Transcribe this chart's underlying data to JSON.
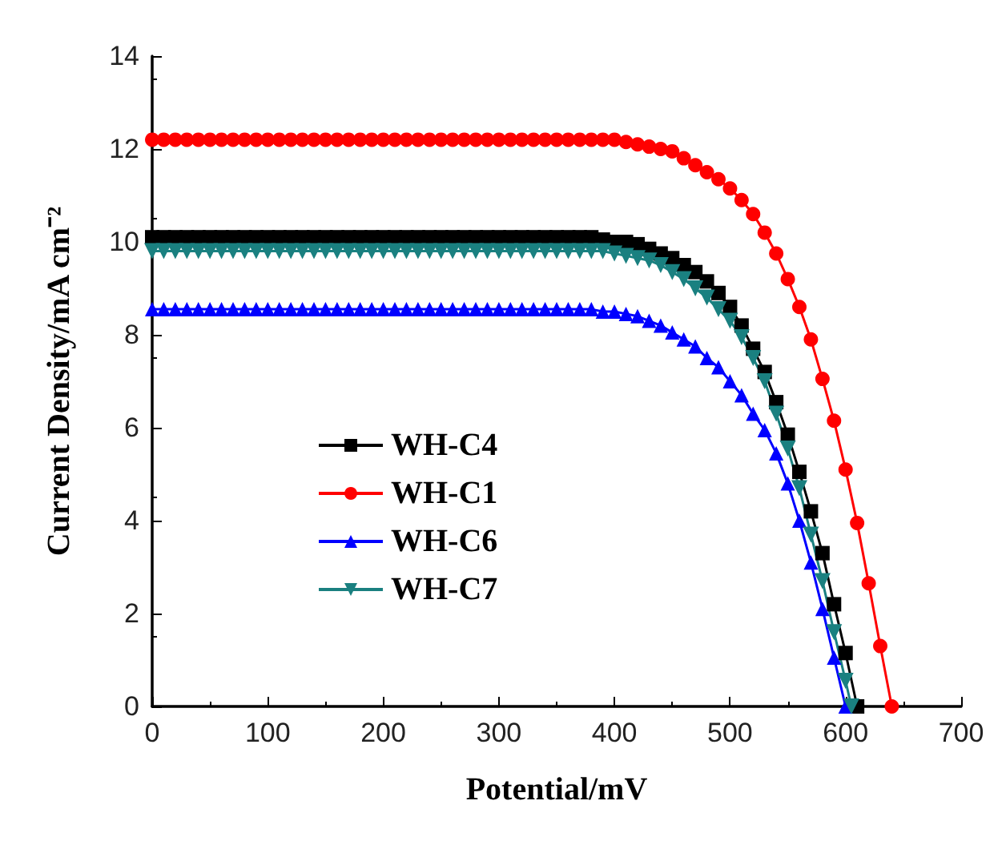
{
  "chart_data": {
    "type": "line",
    "xlabel": "Potential/mV",
    "ylabel": "Current Density/mA cm⁻²",
    "xlim": [
      0,
      700
    ],
    "ylim": [
      0,
      14
    ],
    "xticks": [
      0,
      100,
      200,
      300,
      400,
      500,
      600,
      700
    ],
    "yticks": [
      0,
      2,
      4,
      6,
      8,
      10,
      12,
      14
    ],
    "grid": false,
    "legend": "bottom left",
    "line_style": "solid",
    "series": [
      {
        "name": "WH-C4",
        "color": "#000000",
        "marker": "square",
        "x": [
          0,
          10,
          20,
          30,
          40,
          50,
          60,
          70,
          80,
          90,
          100,
          110,
          120,
          130,
          140,
          150,
          160,
          170,
          180,
          190,
          200,
          210,
          220,
          230,
          240,
          250,
          260,
          270,
          280,
          290,
          300,
          310,
          320,
          330,
          340,
          350,
          360,
          370,
          380,
          390,
          400,
          410,
          420,
          430,
          440,
          450,
          460,
          470,
          480,
          490,
          500,
          510,
          520,
          530,
          540,
          550,
          560,
          570,
          580,
          590,
          600,
          610
        ],
        "values": [
          10.1,
          10.1,
          10.1,
          10.1,
          10.1,
          10.1,
          10.1,
          10.1,
          10.1,
          10.1,
          10.1,
          10.1,
          10.1,
          10.1,
          10.1,
          10.1,
          10.1,
          10.1,
          10.1,
          10.1,
          10.1,
          10.1,
          10.1,
          10.1,
          10.1,
          10.1,
          10.1,
          10.1,
          10.1,
          10.1,
          10.1,
          10.1,
          10.1,
          10.1,
          10.1,
          10.1,
          10.1,
          10.1,
          10.1,
          10.05,
          10.0,
          10.0,
          9.95,
          9.85,
          9.75,
          9.65,
          9.5,
          9.35,
          9.15,
          8.9,
          8.6,
          8.2,
          7.7,
          7.2,
          6.55,
          5.85,
          5.05,
          4.2,
          3.3,
          2.2,
          1.15,
          0
        ]
      },
      {
        "name": "WH-C1",
        "color": "#ff0000",
        "marker": "circle",
        "x": [
          0,
          10,
          20,
          30,
          40,
          50,
          60,
          70,
          80,
          90,
          100,
          110,
          120,
          130,
          140,
          150,
          160,
          170,
          180,
          190,
          200,
          210,
          220,
          230,
          240,
          250,
          260,
          270,
          280,
          290,
          300,
          310,
          320,
          330,
          340,
          350,
          360,
          370,
          380,
          390,
          400,
          410,
          420,
          430,
          440,
          450,
          460,
          470,
          480,
          490,
          500,
          510,
          520,
          530,
          540,
          550,
          560,
          570,
          580,
          590,
          600,
          610,
          620,
          630,
          640
        ],
        "values": [
          12.2,
          12.2,
          12.2,
          12.2,
          12.2,
          12.2,
          12.2,
          12.2,
          12.2,
          12.2,
          12.2,
          12.2,
          12.2,
          12.2,
          12.2,
          12.2,
          12.2,
          12.2,
          12.2,
          12.2,
          12.2,
          12.2,
          12.2,
          12.2,
          12.2,
          12.2,
          12.2,
          12.2,
          12.2,
          12.2,
          12.2,
          12.2,
          12.2,
          12.2,
          12.2,
          12.2,
          12.2,
          12.2,
          12.2,
          12.2,
          12.2,
          12.15,
          12.1,
          12.05,
          12.0,
          11.95,
          11.8,
          11.65,
          11.5,
          11.35,
          11.15,
          10.9,
          10.6,
          10.2,
          9.75,
          9.2,
          8.6,
          7.9,
          7.05,
          6.15,
          5.1,
          3.95,
          2.65,
          1.3,
          0
        ]
      },
      {
        "name": "WH-C6",
        "color": "#0000ff",
        "marker": "triangle",
        "x": [
          0,
          10,
          20,
          30,
          40,
          50,
          60,
          70,
          80,
          90,
          100,
          110,
          120,
          130,
          140,
          150,
          160,
          170,
          180,
          190,
          200,
          210,
          220,
          230,
          240,
          250,
          260,
          270,
          280,
          290,
          300,
          310,
          320,
          330,
          340,
          350,
          360,
          370,
          380,
          390,
          400,
          410,
          420,
          430,
          440,
          450,
          460,
          470,
          480,
          490,
          500,
          510,
          520,
          530,
          540,
          550,
          560,
          570,
          580,
          590,
          600
        ],
        "values": [
          8.55,
          8.55,
          8.55,
          8.55,
          8.55,
          8.55,
          8.55,
          8.55,
          8.55,
          8.55,
          8.55,
          8.55,
          8.55,
          8.55,
          8.55,
          8.55,
          8.55,
          8.55,
          8.55,
          8.55,
          8.55,
          8.55,
          8.55,
          8.55,
          8.55,
          8.55,
          8.55,
          8.55,
          8.55,
          8.55,
          8.55,
          8.55,
          8.55,
          8.55,
          8.55,
          8.55,
          8.55,
          8.55,
          8.55,
          8.5,
          8.5,
          8.45,
          8.4,
          8.3,
          8.2,
          8.05,
          7.9,
          7.75,
          7.5,
          7.3,
          7.0,
          6.7,
          6.3,
          5.95,
          5.45,
          4.8,
          4.0,
          3.1,
          2.1,
          1.05,
          0
        ]
      },
      {
        "name": "WH-C7",
        "color": "#1a8080",
        "marker": "triangle-down",
        "x": [
          0,
          10,
          20,
          30,
          40,
          50,
          60,
          70,
          80,
          90,
          100,
          110,
          120,
          130,
          140,
          150,
          160,
          170,
          180,
          190,
          200,
          210,
          220,
          230,
          240,
          250,
          260,
          270,
          280,
          290,
          300,
          310,
          320,
          330,
          340,
          350,
          360,
          370,
          380,
          390,
          400,
          410,
          420,
          430,
          440,
          450,
          460,
          470,
          480,
          490,
          500,
          510,
          520,
          530,
          540,
          550,
          560,
          570,
          580,
          590,
          600,
          605
        ],
        "values": [
          9.8,
          9.8,
          9.8,
          9.8,
          9.8,
          9.8,
          9.8,
          9.8,
          9.8,
          9.8,
          9.8,
          9.8,
          9.8,
          9.8,
          9.8,
          9.8,
          9.8,
          9.8,
          9.8,
          9.8,
          9.8,
          9.8,
          9.8,
          9.8,
          9.8,
          9.8,
          9.8,
          9.8,
          9.8,
          9.8,
          9.8,
          9.8,
          9.8,
          9.8,
          9.8,
          9.8,
          9.8,
          9.8,
          9.8,
          9.8,
          9.75,
          9.7,
          9.65,
          9.6,
          9.5,
          9.35,
          9.2,
          9.0,
          8.8,
          8.55,
          8.3,
          7.95,
          7.5,
          7.0,
          6.3,
          5.55,
          4.7,
          3.7,
          2.7,
          1.6,
          0.55,
          0
        ]
      }
    ]
  }
}
